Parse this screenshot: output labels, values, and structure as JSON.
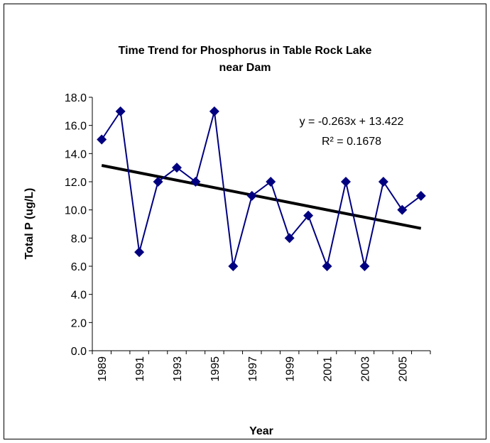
{
  "chart_data": {
    "type": "line",
    "title": [
      "Time Trend for Phosphorus in Table Rock Lake",
      "near Dam"
    ],
    "x_label": "Year",
    "y_label": "Total P (ug/L)",
    "categories": [
      "1989",
      null,
      "1991",
      null,
      "1993",
      null,
      "1995",
      null,
      "1997",
      null,
      "1999",
      null,
      "2001",
      null,
      "2003",
      null,
      "2005",
      null
    ],
    "series": [
      {
        "name": "Total P",
        "color": "#000080",
        "values": [
          15,
          17,
          7,
          12,
          13,
          12,
          17,
          6,
          11,
          12,
          8,
          9.6,
          6,
          12,
          6,
          12,
          10,
          11
        ]
      }
    ],
    "trendline": {
      "slope": -0.263,
      "intercept": 13.422,
      "color": "#000000",
      "equation": "y = -0.263x + 13.422",
      "r_squared": "R² = 0.1678"
    },
    "ylim": [
      0,
      18
    ],
    "yticks": [
      {
        "value": 0,
        "label": "0.0"
      },
      {
        "value": 2,
        "label": "2.0"
      },
      {
        "value": 4,
        "label": "4.0"
      },
      {
        "value": 6,
        "label": "6.0"
      },
      {
        "value": 8,
        "label": "8.0"
      },
      {
        "value": 10,
        "label": "10.0"
      },
      {
        "value": 12,
        "label": "12.0"
      },
      {
        "value": 14,
        "label": "14.0"
      },
      {
        "value": 16,
        "label": "16.0"
      },
      {
        "value": 18,
        "label": "18.0"
      }
    ],
    "grid": false
  }
}
